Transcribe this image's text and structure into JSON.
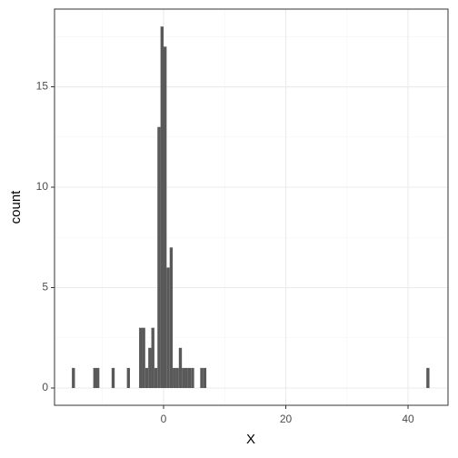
{
  "chart_data": {
    "type": "histogram",
    "xlabel": "X",
    "ylabel": "count",
    "bins": [
      -15,
      -14.5,
      -11.5,
      -11,
      -10.5,
      -8.5,
      -8,
      -6,
      -5.5,
      -4,
      -3.5,
      -3,
      -2.5,
      -2,
      -1.5,
      -1,
      -0.5,
      0,
      0.5,
      1,
      1.5,
      2,
      2.5,
      3,
      3.5,
      4,
      4.5,
      5,
      6,
      6.5,
      7,
      43,
      43.5
    ],
    "values": [
      1,
      0,
      1,
      1,
      0,
      1,
      0,
      1,
      0,
      3,
      3,
      1,
      2,
      3,
      1,
      13,
      18,
      17,
      6,
      7,
      1,
      1,
      2,
      1,
      1,
      1,
      1,
      0,
      1,
      1,
      0,
      1
    ],
    "color": "#595959",
    "xlim": [
      -17.84,
      46.54
    ],
    "xticks": [
      0,
      20,
      40
    ],
    "ylim": [
      -0.86,
      18.87
    ],
    "yticks": [
      0,
      5,
      10,
      15
    ],
    "grid": true
  }
}
